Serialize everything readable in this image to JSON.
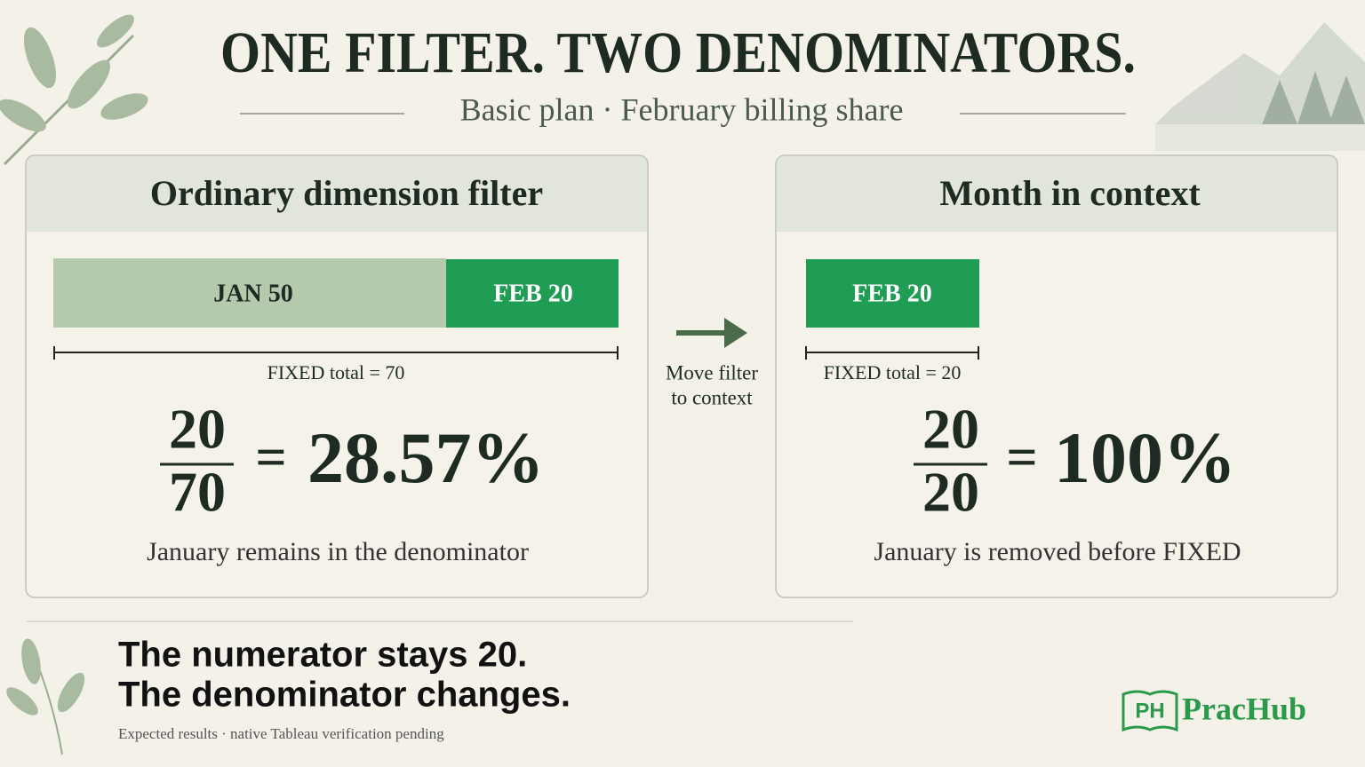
{
  "header": {
    "title": "ONE FILTER. TWO DENOMINATORS.",
    "subtitle": "Basic plan · February billing share"
  },
  "panels": [
    {
      "title": "Ordinary dimension filter",
      "segments": [
        "JAN 50",
        "FEB 20"
      ],
      "total_label": "FIXED total = 70",
      "numerator": "20",
      "denominator": "70",
      "result": "28.57%",
      "caption": "January remains in the denominator"
    },
    {
      "title": "Month in context",
      "segments": [
        "FEB 20"
      ],
      "total_label": "FIXED total = 20",
      "numerator": "20",
      "denominator": "20",
      "result": "100%",
      "caption": "January is removed before FIXED"
    }
  ],
  "transition": {
    "lines": [
      "Move filter",
      "to context"
    ]
  },
  "footer": {
    "headline": [
      "The numerator stays 20.",
      "The denominator changes."
    ],
    "note": "Expected results · native Tableau verification pending"
  },
  "logo": {
    "icon": "PH",
    "name": "PracHub"
  }
}
